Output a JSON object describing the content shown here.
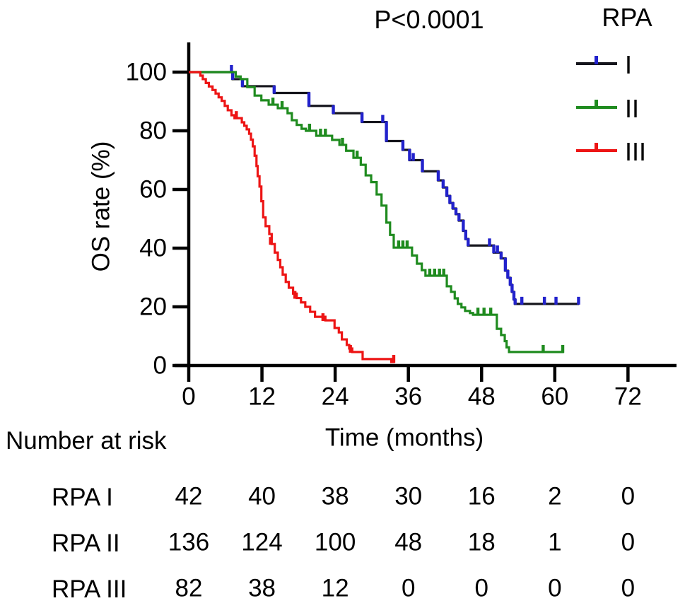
{
  "chart_data": {
    "type": "line",
    "subtype": "kaplan-meier-step",
    "title": "",
    "p_value_annotation": "P<0.0001",
    "legend_title": "RPA",
    "legend_position": "top-right",
    "xlabel": "Time (months)",
    "ylabel": "OS rate (%)",
    "xlim": [
      0,
      80
    ],
    "ylim": [
      0,
      100
    ],
    "x_ticks": [
      0,
      12,
      24,
      36,
      48,
      60,
      72
    ],
    "y_ticks": [
      0,
      20,
      40,
      60,
      80,
      100
    ],
    "grid": false,
    "series": [
      {
        "name": "I",
        "group_label": "RPA I",
        "line_color": "#15151c",
        "mark_color": "#2222cc",
        "points": [
          [
            0,
            100
          ],
          [
            7.2,
            97.6
          ],
          [
            8.8,
            95.2
          ],
          [
            14,
            92.9
          ],
          [
            19.7,
            88.5
          ],
          [
            23.7,
            86
          ],
          [
            28.4,
            83
          ],
          [
            32.4,
            76.5
          ],
          [
            35.1,
            73.5
          ],
          [
            36.2,
            70
          ],
          [
            38.3,
            66.2
          ],
          [
            40.9,
            63.1
          ],
          [
            41.7,
            60.7
          ],
          [
            42.3,
            57.8
          ],
          [
            42.8,
            55.4
          ],
          [
            43.3,
            53.5
          ],
          [
            43.8,
            51.6
          ],
          [
            44.3,
            49.4
          ],
          [
            45,
            45.9
          ],
          [
            45.4,
            43.1
          ],
          [
            45.8,
            40.9
          ],
          [
            50,
            38.5
          ],
          [
            51.2,
            36.5
          ],
          [
            51.9,
            32.3
          ],
          [
            52.3,
            29.9
          ],
          [
            52.7,
            27.5
          ],
          [
            53,
            25.1
          ],
          [
            53.3,
            22.5
          ],
          [
            53.5,
            21
          ]
        ],
        "end_time": 64,
        "censor_marks": [
          [
            7,
            100
          ],
          [
            31.8,
            83
          ],
          [
            36.8,
            70
          ],
          [
            49.3,
            40.9
          ],
          [
            50.6,
            38.5
          ],
          [
            54.6,
            21
          ],
          [
            58.3,
            21
          ],
          [
            60.2,
            21
          ],
          [
            63.9,
            21
          ]
        ]
      },
      {
        "name": "II",
        "group_label": "RPA II",
        "line_color": "#1f8b1f",
        "mark_color": "#1f8b1f",
        "points": [
          [
            0,
            100
          ],
          [
            7.7,
            98.5
          ],
          [
            8.5,
            97.6
          ],
          [
            9.6,
            94.9
          ],
          [
            10.8,
            92
          ],
          [
            11.9,
            90.4
          ],
          [
            13.1,
            88.9
          ],
          [
            14.6,
            87.7
          ],
          [
            16.2,
            86
          ],
          [
            16.9,
            83.6
          ],
          [
            17.7,
            82
          ],
          [
            18.5,
            80.7
          ],
          [
            19.2,
            80
          ],
          [
            20.9,
            78.3
          ],
          [
            23.5,
            76.9
          ],
          [
            24.7,
            75.2
          ],
          [
            25.8,
            73.2
          ],
          [
            27,
            70.8
          ],
          [
            28.2,
            68.4
          ],
          [
            29,
            64.8
          ],
          [
            29.9,
            62.5
          ],
          [
            30.8,
            58.3
          ],
          [
            31.6,
            54.5
          ],
          [
            32.4,
            48.7
          ],
          [
            33,
            44.5
          ],
          [
            33.6,
            40.2
          ],
          [
            36.6,
            37.5
          ],
          [
            37.4,
            34.7
          ],
          [
            38.2,
            32.5
          ],
          [
            38.8,
            30.6
          ],
          [
            42.3,
            27
          ],
          [
            43,
            25.1
          ],
          [
            43.6,
            22.9
          ],
          [
            44.1,
            21
          ],
          [
            44.7,
            19.8
          ],
          [
            45.3,
            18.6
          ],
          [
            46.1,
            17.9
          ],
          [
            46.6,
            17.3
          ],
          [
            50.5,
            12.5
          ],
          [
            51.2,
            10.4
          ],
          [
            51.8,
            8.3
          ],
          [
            52.1,
            6.2
          ],
          [
            52.5,
            4.6
          ]
        ],
        "end_time": 61.5,
        "censor_marks": [
          [
            13.8,
            88.9
          ],
          [
            15.3,
            87.7
          ],
          [
            19.8,
            80
          ],
          [
            21.6,
            78.3
          ],
          [
            22.4,
            78.3
          ],
          [
            25.2,
            75.2
          ],
          [
            27.6,
            70.8
          ],
          [
            34.4,
            40.2
          ],
          [
            35.1,
            40.2
          ],
          [
            35.8,
            40.2
          ],
          [
            39.5,
            30.6
          ],
          [
            40.3,
            30.6
          ],
          [
            41.1,
            30.6
          ],
          [
            41.8,
            30.6
          ],
          [
            47.4,
            17.3
          ],
          [
            48.4,
            17.3
          ],
          [
            49.5,
            17.3
          ],
          [
            58.1,
            4.6
          ],
          [
            61.3,
            4.6
          ]
        ]
      },
      {
        "name": "III",
        "group_label": "RPA III",
        "line_color": "#ed1515",
        "mark_color": "#ed1515",
        "points": [
          [
            0,
            100
          ],
          [
            1.9,
            98.8
          ],
          [
            2.3,
            97.6
          ],
          [
            2.8,
            96.3
          ],
          [
            3.3,
            95.1
          ],
          [
            3.9,
            93.9
          ],
          [
            4.4,
            92.7
          ],
          [
            4.9,
            91.4
          ],
          [
            5.4,
            90.2
          ],
          [
            5.9,
            88.5
          ],
          [
            6.4,
            87
          ],
          [
            7,
            85.3
          ],
          [
            7.5,
            84.3
          ],
          [
            8.7,
            82.9
          ],
          [
            9.1,
            81.7
          ],
          [
            9.5,
            80.5
          ],
          [
            9.9,
            79
          ],
          [
            10.2,
            77
          ],
          [
            10.5,
            74.7
          ],
          [
            10.8,
            71.5
          ],
          [
            11.1,
            68
          ],
          [
            11.3,
            64.5
          ],
          [
            11.6,
            61
          ],
          [
            11.9,
            56
          ],
          [
            12.2,
            50.5
          ],
          [
            12.6,
            47.5
          ],
          [
            13.2,
            44.8
          ],
          [
            13.6,
            41.4
          ],
          [
            14.1,
            38.5
          ],
          [
            14.6,
            36
          ],
          [
            15,
            33.5
          ],
          [
            15.4,
            31
          ],
          [
            15.9,
            28.5
          ],
          [
            16.4,
            26.5
          ],
          [
            17.1,
            24.5
          ],
          [
            17.7,
            23
          ],
          [
            18.4,
            21.5
          ],
          [
            19.1,
            20
          ],
          [
            19.9,
            18.3
          ],
          [
            20.7,
            16.6
          ],
          [
            22.4,
            15.4
          ],
          [
            23.9,
            12.8
          ],
          [
            24.6,
            11.3
          ],
          [
            25.1,
            8.9
          ],
          [
            25.9,
            7
          ],
          [
            26.3,
            5.8
          ],
          [
            26.8,
            4.6
          ],
          [
            28.5,
            2.2
          ],
          [
            33.2,
            1.2
          ]
        ],
        "end_time": 33.8,
        "censor_marks": [
          [
            7.8,
            84.3
          ],
          [
            13.4,
            41.4
          ],
          [
            17.4,
            23
          ],
          [
            22,
            15.4
          ],
          [
            26.5,
            4.6
          ],
          [
            33.6,
            1.2
          ]
        ]
      }
    ],
    "number_at_risk": {
      "title": "Number at risk",
      "time_points": [
        0,
        12,
        24,
        36,
        48,
        60,
        72
      ],
      "rows": [
        {
          "label": "RPA I",
          "values": [
            42,
            40,
            38,
            30,
            16,
            2,
            0
          ]
        },
        {
          "label": "RPA II",
          "values": [
            136,
            124,
            100,
            48,
            18,
            1,
            0
          ]
        },
        {
          "label": "RPA III",
          "values": [
            82,
            38,
            12,
            0,
            0,
            0,
            0
          ]
        }
      ]
    }
  }
}
